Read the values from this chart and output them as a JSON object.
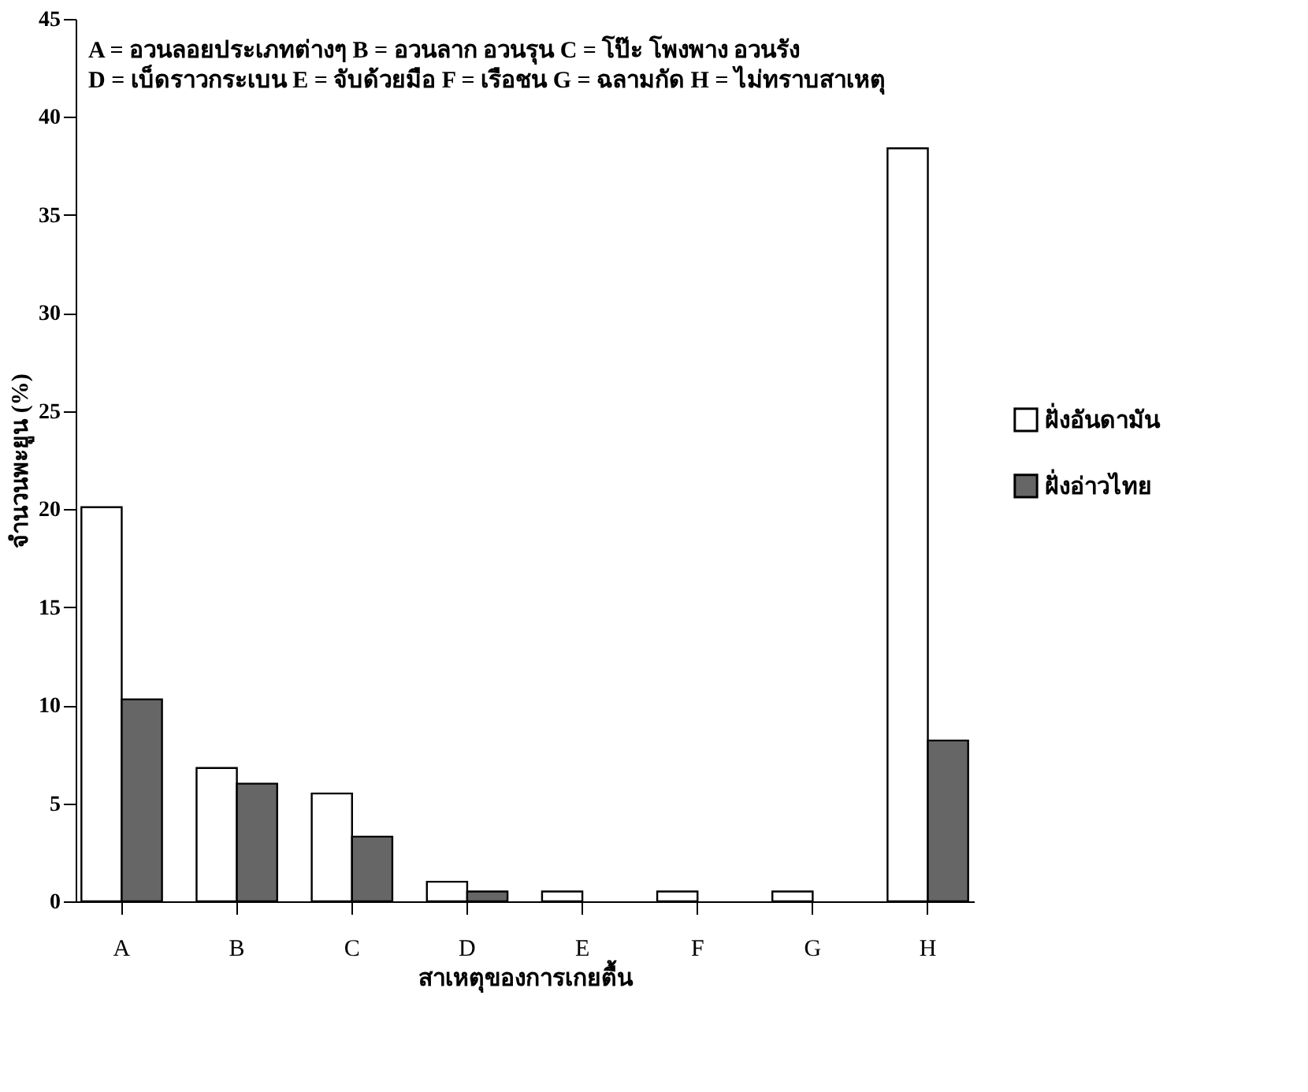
{
  "chart_data": {
    "type": "bar",
    "xlabel": "สาเหตุของการเกยตื้น",
    "ylabel": "จำนวนพะยูน (%)",
    "categories": [
      "A",
      "B",
      "C",
      "D",
      "E",
      "F",
      "G",
      "H"
    ],
    "series": [
      {
        "name": "ฝั่งอันดามัน",
        "color": "#ffffff",
        "values": [
          20.1,
          6.8,
          5.5,
          1.0,
          0.5,
          0.5,
          0.5,
          38.4
        ]
      },
      {
        "name": "ฝั่งอ่าวไทย",
        "color": "#666666",
        "values": [
          10.3,
          6.0,
          3.3,
          0.5,
          0,
          0,
          0,
          8.2
        ]
      }
    ],
    "ylim": [
      0,
      45
    ],
    "yticks": [
      0,
      5,
      10,
      15,
      20,
      25,
      30,
      35,
      40,
      45
    ],
    "grid": false,
    "legend": "right",
    "annotations": [
      "A = อวนลอยประเภทต่างๆ B = อวนลาก อวนรุน C = โป๊ะ โพงพาง อวนรัง",
      "D = เบ็ดราวกระเบน E = จับด้วยมือ F = เรือชน G = ฉลามกัด H = ไม่ทราบสาเหตุ"
    ]
  }
}
